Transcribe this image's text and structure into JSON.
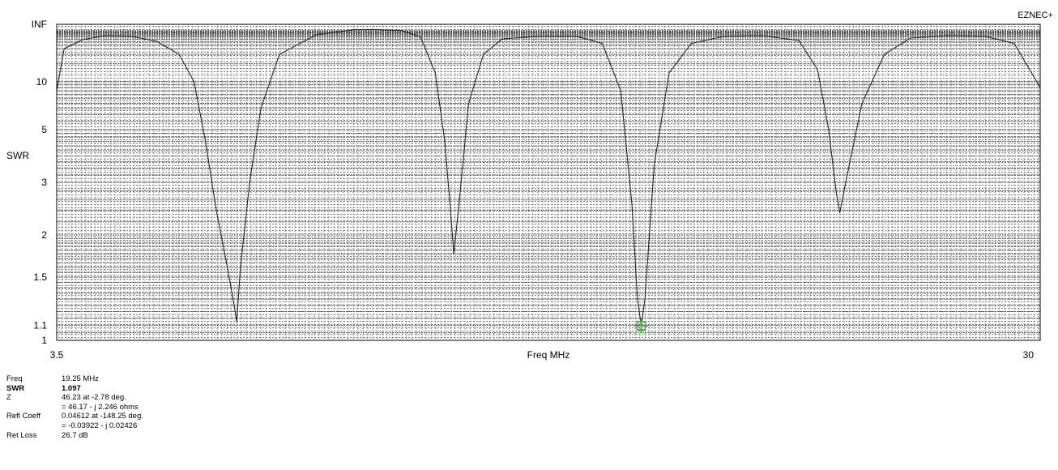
{
  "brand": "EZNEC+",
  "chart_data": {
    "type": "line",
    "title": "",
    "xlabel": "Freq MHz",
    "ylabel": "SWR",
    "x_tick_labels": [
      "3.5",
      "30"
    ],
    "xlim": [
      3.5,
      30
    ],
    "y_tick_labels": [
      "INF",
      "10",
      "5",
      "3",
      "2",
      "1.5",
      "1.1",
      "1"
    ],
    "y_scale": "reflection-coefficient (SWR)",
    "grid": true,
    "series": [
      {
        "color": "#000000",
        "points": [
          [
            3.5,
            8.5
          ],
          [
            3.7,
            25
          ],
          [
            4.2,
            40
          ],
          [
            4.8,
            55
          ],
          [
            5.5,
            52
          ],
          [
            6.2,
            36
          ],
          [
            6.8,
            20
          ],
          [
            7.2,
            10
          ],
          [
            7.5,
            4.5
          ],
          [
            7.8,
            2.4
          ],
          [
            8.1,
            1.6
          ],
          [
            8.3,
            1.22
          ],
          [
            8.35,
            1.12
          ],
          [
            8.45,
            1.6
          ],
          [
            8.7,
            3.0
          ],
          [
            9.0,
            6.5
          ],
          [
            9.5,
            20
          ],
          [
            10.5,
            60
          ],
          [
            11.5,
            115
          ],
          [
            12.0,
            120
          ],
          [
            12.8,
            100
          ],
          [
            13.3,
            50
          ],
          [
            13.7,
            12
          ],
          [
            13.95,
            4.5
          ],
          [
            14.1,
            2.5
          ],
          [
            14.2,
            1.75
          ],
          [
            14.35,
            2.6
          ],
          [
            14.6,
            7
          ],
          [
            15.0,
            20
          ],
          [
            15.5,
            42
          ],
          [
            16.5,
            52
          ],
          [
            17.5,
            52
          ],
          [
            18.2,
            32
          ],
          [
            18.7,
            8.5
          ],
          [
            19.0,
            2.5
          ],
          [
            19.15,
            1.3
          ],
          [
            19.25,
            1.097
          ],
          [
            19.35,
            1.3
          ],
          [
            19.6,
            3.5
          ],
          [
            20.0,
            12
          ],
          [
            20.6,
            32
          ],
          [
            21.5,
            52
          ],
          [
            22.5,
            55
          ],
          [
            23.5,
            38
          ],
          [
            24.0,
            13
          ],
          [
            24.3,
            5
          ],
          [
            24.5,
            2.8
          ],
          [
            24.6,
            2.35
          ],
          [
            24.8,
            3.2
          ],
          [
            25.2,
            7
          ],
          [
            25.8,
            20
          ],
          [
            26.5,
            45
          ],
          [
            27.5,
            55
          ],
          [
            28.5,
            52
          ],
          [
            29.3,
            32
          ],
          [
            30.0,
            9
          ]
        ]
      }
    ],
    "marker": {
      "x": 19.25,
      "y": 1.097,
      "color": "#33cc33"
    }
  },
  "readout": {
    "rows": [
      {
        "label": "Freq",
        "value": "19.25 MHz",
        "bold": false
      },
      {
        "label": "SWR",
        "value": "1.097",
        "bold": true
      },
      {
        "label": "Z",
        "value": "46.23 at -2.78 deg.",
        "bold": false
      },
      {
        "label": "",
        "value": "= 46.17 - j 2.246 ohms",
        "bold": false
      },
      {
        "label": "Refl Coeff",
        "value": "0.04612 at -148.25 deg.",
        "bold": false
      },
      {
        "label": "",
        "value": "= -0.03922 - j 0.02426",
        "bold": false
      },
      {
        "label": "Ret Loss",
        "value": "26.7 dB",
        "bold": false
      }
    ]
  }
}
